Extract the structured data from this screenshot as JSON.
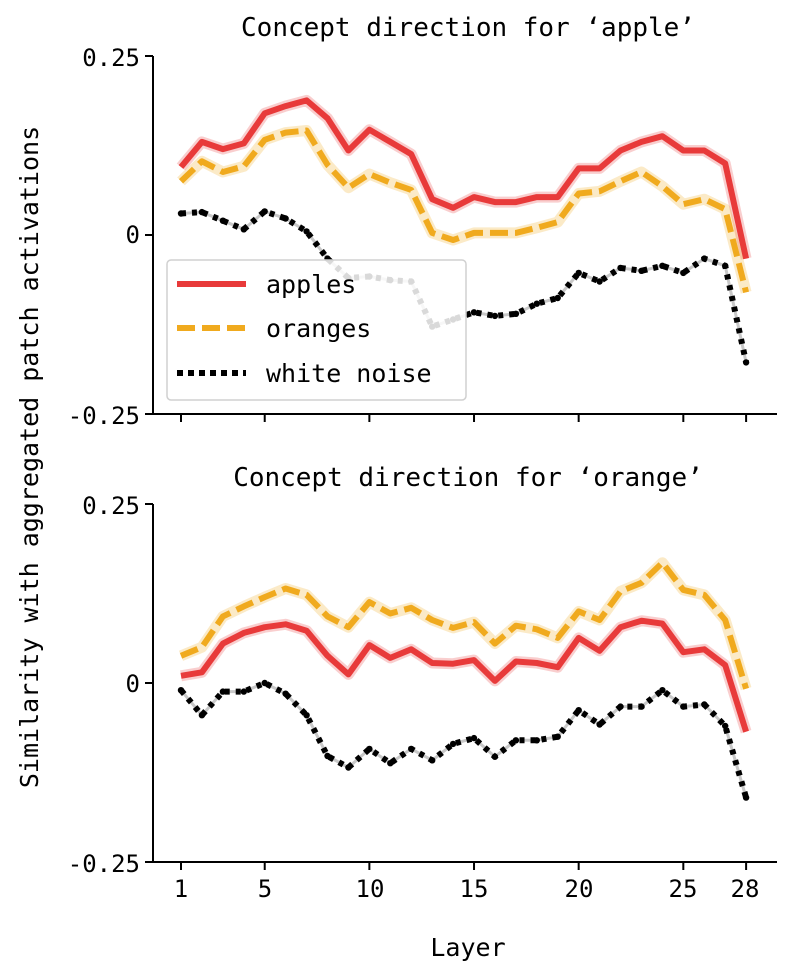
{
  "figure": {
    "ylabel": "Similarity with aggregated patch activations",
    "xlabel": "Layer",
    "xticks": [
      "1",
      "5",
      "10",
      "15",
      "20",
      "25",
      "28"
    ],
    "yticks": [
      "0.25",
      "0",
      "-0.25"
    ]
  },
  "chart_data": [
    {
      "type": "line",
      "title": "Concept direction for ‘apple’",
      "xlabel": "",
      "ylabel": "Similarity with aggregated patch activations",
      "ylim": [
        -0.25,
        0.25
      ],
      "x": [
        1,
        2,
        3,
        4,
        5,
        6,
        7,
        8,
        9,
        10,
        11,
        12,
        13,
        14,
        15,
        16,
        17,
        18,
        19,
        20,
        21,
        22,
        23,
        24,
        25,
        26,
        27,
        28
      ],
      "legend_location": "center-left",
      "series": [
        {
          "name": "apples",
          "color": "#e83a3a",
          "style": "solid",
          "values": [
            0.095,
            0.13,
            0.12,
            0.128,
            0.17,
            0.18,
            0.188,
            0.163,
            0.118,
            0.147,
            0.13,
            0.113,
            0.05,
            0.038,
            0.053,
            0.046,
            0.046,
            0.053,
            0.053,
            0.093,
            0.093,
            0.118,
            0.13,
            0.138,
            0.118,
            0.118,
            0.1,
            -0.033
          ]
        },
        {
          "name": "oranges",
          "color": "#f0aa1e",
          "style": "dashed",
          "values": [
            0.075,
            0.103,
            0.088,
            0.096,
            0.133,
            0.143,
            0.146,
            0.098,
            0.066,
            0.085,
            0.073,
            0.063,
            0.003,
            -0.007,
            0.003,
            0.003,
            0.003,
            0.01,
            0.018,
            0.058,
            0.061,
            0.075,
            0.088,
            0.068,
            0.043,
            0.05,
            0.036,
            -0.08
          ]
        },
        {
          "name": "white noise",
          "color": "#000000",
          "style": "dotted",
          "values": [
            0.03,
            0.032,
            0.02,
            0.008,
            0.033,
            0.023,
            0.005,
            -0.033,
            -0.06,
            -0.058,
            -0.063,
            -0.065,
            -0.128,
            -0.118,
            -0.108,
            -0.113,
            -0.11,
            -0.096,
            -0.088,
            -0.053,
            -0.065,
            -0.046,
            -0.05,
            -0.043,
            -0.053,
            -0.033,
            -0.043,
            -0.178
          ]
        }
      ]
    },
    {
      "type": "line",
      "title": "Concept direction for ‘orange’",
      "xlabel": "Layer",
      "ylabel": "Similarity with aggregated patch activations",
      "ylim": [
        -0.25,
        0.25
      ],
      "x": [
        1,
        2,
        3,
        4,
        5,
        6,
        7,
        8,
        9,
        10,
        11,
        12,
        13,
        14,
        15,
        16,
        17,
        18,
        19,
        20,
        21,
        22,
        23,
        24,
        25,
        26,
        27,
        28
      ],
      "series": [
        {
          "name": "apples",
          "color": "#e83a3a",
          "style": "solid",
          "values": [
            0.01,
            0.015,
            0.055,
            0.07,
            0.078,
            0.082,
            0.073,
            0.038,
            0.012,
            0.053,
            0.035,
            0.047,
            0.028,
            0.027,
            0.032,
            0.003,
            0.03,
            0.028,
            0.022,
            0.063,
            0.045,
            0.078,
            0.087,
            0.083,
            0.043,
            0.047,
            0.025,
            -0.068
          ]
        },
        {
          "name": "oranges",
          "color": "#f0aa1e",
          "style": "dashed",
          "values": [
            0.038,
            0.05,
            0.093,
            0.107,
            0.12,
            0.132,
            0.123,
            0.093,
            0.078,
            0.113,
            0.097,
            0.105,
            0.088,
            0.077,
            0.085,
            0.055,
            0.08,
            0.075,
            0.063,
            0.1,
            0.088,
            0.128,
            0.14,
            0.168,
            0.13,
            0.123,
            0.088,
            -0.008
          ]
        },
        {
          "name": "white noise",
          "color": "#000000",
          "style": "dotted",
          "values": [
            -0.01,
            -0.045,
            -0.012,
            -0.012,
            0.0,
            -0.015,
            -0.045,
            -0.102,
            -0.118,
            -0.092,
            -0.112,
            -0.092,
            -0.108,
            -0.085,
            -0.077,
            -0.103,
            -0.08,
            -0.08,
            -0.075,
            -0.038,
            -0.058,
            -0.033,
            -0.033,
            -0.01,
            -0.033,
            -0.03,
            -0.06,
            -0.16
          ]
        }
      ]
    }
  ]
}
